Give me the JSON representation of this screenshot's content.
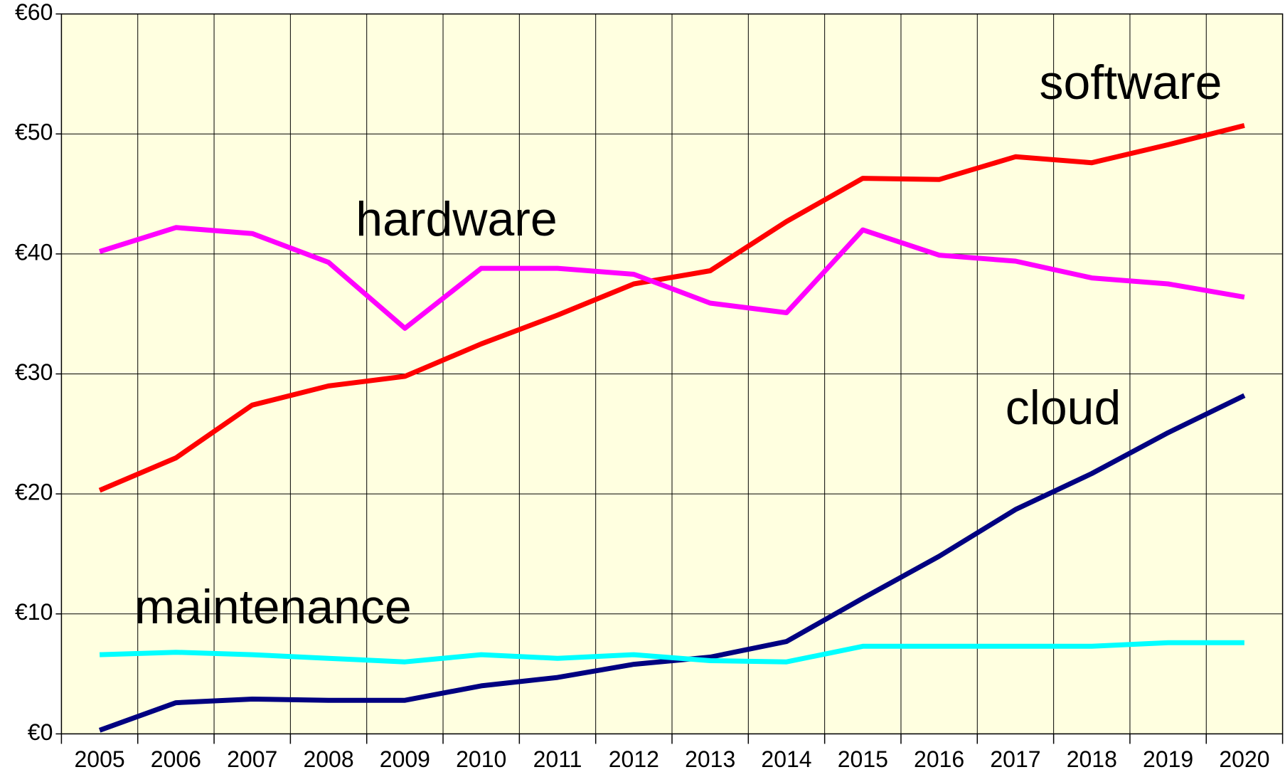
{
  "chart_data": {
    "type": "line",
    "categories": [
      "2005",
      "2006",
      "2007",
      "2008",
      "2009",
      "2010",
      "2011",
      "2012",
      "2013",
      "2014",
      "2015",
      "2016",
      "2017",
      "2018",
      "2019",
      "2020"
    ],
    "series": [
      {
        "name": "software",
        "color": "#ff0000",
        "values": [
          20.3,
          23.0,
          27.4,
          29.0,
          29.8,
          32.5,
          34.9,
          37.5,
          38.6,
          42.7,
          46.3,
          46.2,
          48.1,
          47.6,
          49.1,
          50.7
        ]
      },
      {
        "name": "hardware",
        "color": "#ff00ff",
        "values": [
          40.2,
          42.2,
          41.7,
          39.3,
          33.8,
          38.8,
          38.8,
          38.3,
          35.9,
          35.1,
          42.0,
          39.9,
          39.4,
          38.0,
          37.5,
          36.4
        ]
      },
      {
        "name": "cloud",
        "color": "#000080",
        "values": [
          0.3,
          2.6,
          2.9,
          2.8,
          2.8,
          4.0,
          4.7,
          5.8,
          6.4,
          7.7,
          11.3,
          14.8,
          18.7,
          21.7,
          25.1,
          28.2
        ]
      },
      {
        "name": "maintenance",
        "color": "#00ffff",
        "values": [
          6.6,
          6.8,
          6.6,
          6.3,
          6.0,
          6.6,
          6.3,
          6.6,
          6.1,
          6.0,
          7.3,
          7.3,
          7.3,
          7.3,
          7.6,
          7.6
        ]
      }
    ],
    "ylim": [
      0,
      60
    ],
    "yticks": [
      {
        "value": 0,
        "label": "€0"
      },
      {
        "value": 10,
        "label": "€10"
      },
      {
        "value": 20,
        "label": "€20"
      },
      {
        "value": 30,
        "label": "€30"
      },
      {
        "value": 40,
        "label": "€40"
      },
      {
        "value": 50,
        "label": "€50"
      },
      {
        "value": 60,
        "label": "€60"
      }
    ],
    "grid": true,
    "background": "#ffffe0"
  }
}
